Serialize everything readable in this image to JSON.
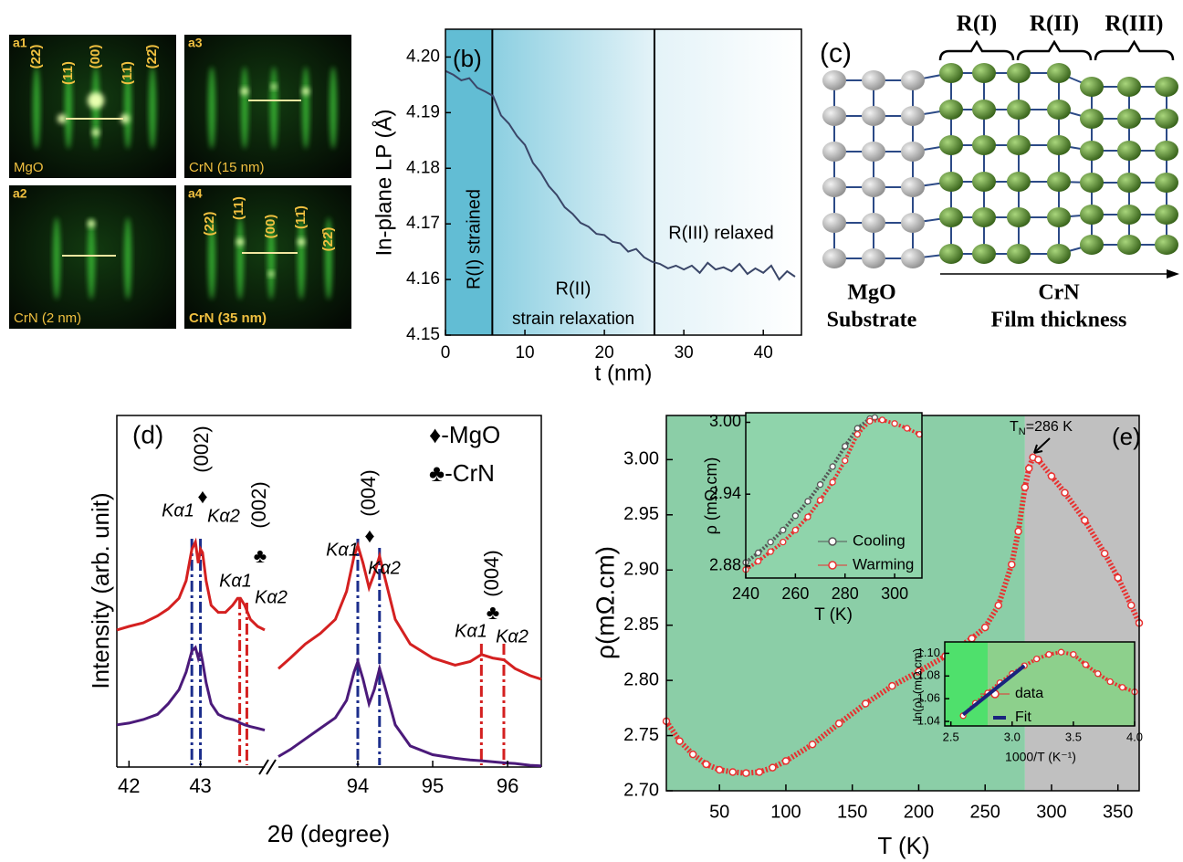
{
  "rheed": {
    "panels": [
      {
        "tag": "a1",
        "caption": "MgO",
        "indices": [
          "(22)",
          "(11)",
          "(00)",
          "(11̄)",
          "(22̄)"
        ]
      },
      {
        "tag": "a3",
        "caption": "CrN (15 nm)"
      },
      {
        "tag": "a2",
        "caption": "CrN (2 nm)"
      },
      {
        "tag": "a4",
        "caption": "CrN (35 nm)",
        "indices": [
          "(22)",
          "(11)",
          "(00)",
          "(11̄)",
          "(22̄)"
        ]
      }
    ]
  },
  "lattice": {
    "label": "(c)",
    "regions": [
      "R(I)",
      "R(II)",
      "R(III)"
    ],
    "substrate": [
      "MgO",
      "Substrate"
    ],
    "film": [
      "CrN",
      "Film thickness"
    ]
  },
  "chart_data": [
    {
      "type": "line",
      "title": "(b)",
      "xlabel": "t (nm)",
      "ylabel": "In-plane LP (Å)",
      "xlim": [
        0,
        44.8
      ],
      "ylim": [
        4.15,
        4.205
      ],
      "xticks": [
        0,
        10,
        20,
        30,
        40
      ],
      "yticks": [
        4.15,
        4.16,
        4.17,
        4.18,
        4.19,
        {
          "value": 4.2,
          "label": "4.20"
        }
      ],
      "color": "#3a4668",
      "regions": [
        5.9,
        26.3
      ],
      "region_colors": [
        "#62bdd4",
        "#8ccfe1",
        "#e4f3f8"
      ],
      "annotations": [
        "R(I) strained",
        "R(II)",
        "strain relaxation",
        "R(III) relaxed"
      ],
      "x": [
        0,
        1,
        2,
        3,
        4,
        5,
        6,
        7,
        8,
        9,
        10,
        11,
        12,
        13,
        14,
        15,
        16,
        17,
        18,
        19,
        20,
        21,
        22,
        23,
        24,
        25,
        26,
        27,
        28,
        29,
        30,
        31,
        32,
        33,
        34,
        35,
        36,
        37,
        38,
        39,
        40,
        41,
        42,
        43,
        44
      ],
      "values": [
        4.1975,
        4.1968,
        4.1958,
        4.1962,
        4.1945,
        4.1938,
        4.193,
        4.1895,
        4.188,
        4.1858,
        4.1842,
        4.181,
        4.1792,
        4.1768,
        4.1752,
        4.173,
        4.1718,
        4.1702,
        4.1695,
        4.1682,
        4.168,
        4.1668,
        4.1665,
        4.165,
        4.1655,
        4.164,
        4.1632,
        4.1628,
        4.162,
        4.1625,
        4.1618,
        4.1625,
        4.1612,
        4.163,
        4.1618,
        4.1622,
        4.1615,
        4.1628,
        4.161,
        4.162,
        4.1612,
        4.1625,
        4.16,
        4.1615,
        4.1605
      ]
    },
    {
      "type": "broken-line",
      "title": "(d)",
      "xlabel": "2θ (degree)",
      "ylabel": "Intensity (arb. unit)",
      "ylim": [
        0,
        100
      ],
      "legend_notes": [
        "♦-MgO",
        "♣-CrN"
      ],
      "segments": [
        {
          "xlim": [
            41.83,
            43.9
          ],
          "xticks": [
            42,
            43
          ],
          "x": [
            41.83,
            42.0,
            42.2,
            42.4,
            42.55,
            42.7,
            42.8,
            42.88,
            42.93,
            42.97,
            43.0,
            43.03,
            43.08,
            43.15,
            43.25,
            43.35,
            43.45,
            43.52,
            43.56,
            43.62,
            43.7,
            43.8,
            43.9
          ],
          "series": [
            {
              "color": "#d42020",
              "values": [
                39,
                40,
                41,
                43,
                45,
                48,
                53,
                62,
                64,
                58,
                62,
                61,
                53,
                46,
                44,
                44,
                46,
                48,
                48,
                46,
                42,
                40,
                39
              ]
            },
            {
              "color": "#4b1a7a",
              "values": [
                12,
                12.5,
                13.5,
                15,
                18,
                22,
                27,
                33,
                34,
                31,
                33,
                30,
                24,
                18,
                15,
                14,
                13.5,
                13,
                12.5,
                12,
                11.5,
                11,
                10.5
              ]
            }
          ],
          "reference_lines": [
            {
              "x": 42.88,
              "color": "#1c2e8c"
            },
            {
              "x": 43.0,
              "color": "#1c2e8c"
            },
            {
              "x": 43.55,
              "color": "#d42020"
            },
            {
              "x": 43.65,
              "color": "#d42020"
            }
          ],
          "peak_labels": [
            "Kα1",
            "Kα2",
            "Kα1",
            "Kα2"
          ],
          "reflections": [
            {
              "index": "(002)",
              "symbol": "♦"
            },
            {
              "index": "(002)",
              "symbol": "♣"
            }
          ]
        },
        {
          "xlim": [
            92.94,
            96.45
          ],
          "xticks": [
            94,
            95,
            96
          ],
          "x": [
            92.94,
            93.1,
            93.3,
            93.5,
            93.7,
            93.85,
            93.95,
            94.0,
            94.07,
            94.15,
            94.22,
            94.29,
            94.36,
            94.5,
            94.7,
            95.0,
            95.3,
            95.5,
            95.65,
            95.8,
            95.95,
            96.1,
            96.3,
            96.45
          ],
          "series": [
            {
              "color": "#d42020",
              "values": [
                28,
                31,
                35,
                38,
                42,
                50,
                60,
                63,
                58,
                51,
                55,
                60,
                54,
                42,
                35,
                31,
                29,
                30,
                32,
                31,
                30.5,
                28,
                26,
                25
              ]
            },
            {
              "color": "#4b1a7a",
              "values": [
                3,
                5,
                8,
                11,
                14,
                19,
                27,
                30,
                25,
                18,
                22,
                28,
                23,
                12,
                6,
                3.5,
                2.5,
                2,
                1.8,
                1.5,
                1.2,
                1,
                0.5,
                0.3
              ]
            }
          ],
          "reference_lines": [
            {
              "x": 94.0,
              "color": "#1c2e8c"
            },
            {
              "x": 94.29,
              "color": "#1c2e8c"
            },
            {
              "x": 95.65,
              "color": "#d42020"
            },
            {
              "x": 95.95,
              "color": "#d42020"
            }
          ],
          "peak_labels": [
            "Kα1",
            "Kα2",
            "Kα1",
            "Kα2"
          ],
          "reflections": [
            {
              "index": "(004)",
              "symbol": "♦"
            },
            {
              "index": "(004)",
              "symbol": "♣"
            }
          ]
        }
      ]
    },
    {
      "type": "scatter-line",
      "title": "(e)",
      "xlabel": "T (K)",
      "ylabel": "ρ(mΩ.cm)",
      "xlim": [
        10,
        366
      ],
      "ylim": [
        2.7,
        3.04
      ],
      "xticks": [
        50,
        100,
        150,
        200,
        250,
        300,
        350
      ],
      "yticks": [
        {
          "value": 2.7,
          "label": "2.70"
        },
        2.75,
        {
          "value": 2.8,
          "label": "2.80"
        },
        2.85,
        {
          "value": 2.9,
          "label": "2.90"
        },
        2.95,
        {
          "value": 3,
          "label": "3.00"
        }
      ],
      "color": "#e8302f",
      "shade_split": 280,
      "shade_colors": [
        "#8bcea7",
        "#c0c0c0"
      ],
      "tn_label": {
        "symbol": "T",
        "subscript": "N",
        "text": "=286 K"
      },
      "x": [
        10,
        20,
        30,
        40,
        50,
        60,
        70,
        80,
        90,
        100,
        120,
        140,
        160,
        180,
        200,
        220,
        240,
        250,
        260,
        270,
        275,
        280,
        283,
        286,
        290,
        300,
        310,
        325,
        340,
        350,
        360,
        366
      ],
      "values": [
        2.763,
        2.745,
        2.733,
        2.724,
        2.719,
        2.717,
        2.716,
        2.717,
        2.721,
        2.727,
        2.742,
        2.761,
        2.779,
        2.795,
        2.808,
        2.822,
        2.838,
        2.848,
        2.868,
        2.905,
        2.935,
        2.975,
        2.992,
        3.002,
        3.0,
        2.985,
        2.97,
        2.945,
        2.915,
        2.893,
        2.868,
        2.852
      ]
    },
    {
      "type": "scatter-line",
      "xlabel": "T (K)",
      "ylabel": "ρ (mΩ.cm)",
      "xlim": [
        240,
        311
      ],
      "ylim": [
        2.87,
        3.008
      ],
      "xticks": [
        240,
        260,
        280,
        300
      ],
      "yticks": [
        2.88,
        2.94,
        {
          "value": 3,
          "label": "3.00"
        }
      ],
      "background": "#8fd4ab",
      "series": [
        {
          "name": "Cooling",
          "color": "#555555",
          "x": [
            240,
            245,
            250,
            255,
            260,
            265,
            270,
            275,
            280,
            285,
            290,
            292
          ],
          "values": [
            2.883,
            2.891,
            2.9,
            2.91,
            2.922,
            2.934,
            2.948,
            2.963,
            2.98,
            2.995,
            3.003,
            3.004
          ]
        },
        {
          "name": "Warming",
          "color": "#e8302f",
          "x": [
            240,
            245,
            250,
            255,
            260,
            265,
            270,
            275,
            280,
            285,
            290,
            295,
            300,
            305,
            310
          ],
          "values": [
            2.877,
            2.884,
            2.892,
            2.9,
            2.91,
            2.921,
            2.935,
            2.95,
            2.968,
            2.99,
            3.001,
            3.002,
            2.999,
            2.995,
            2.99
          ]
        }
      ]
    },
    {
      "type": "scatter-line",
      "xlabel": "1000/T (K⁻¹)",
      "ylabel": "ln(ρ) (mΩ.cm)",
      "xlim": [
        2.45,
        4.0
      ],
      "ylim": [
        1.036,
        1.11
      ],
      "xticks": [
        2.5,
        {
          "value": 3,
          "label": "3.0"
        },
        3.5,
        {
          "value": 4,
          "label": "4.0"
        }
      ],
      "yticks": [
        1.04,
        1.06,
        1.08,
        {
          "value": 1.1,
          "label": "1.10"
        }
      ],
      "shade_split": 2.8,
      "shade_colors": [
        "#4fe06c",
        "#8dd08c"
      ],
      "series": [
        {
          "name": "data",
          "color": "#e8302f",
          "x": [
            2.6,
            2.7,
            2.8,
            2.9,
            3.0,
            3.1,
            3.2,
            3.3,
            3.4,
            3.5,
            3.6,
            3.7,
            3.8,
            3.9,
            4.0
          ],
          "values": [
            1.045,
            1.056,
            1.065,
            1.074,
            1.082,
            1.089,
            1.095,
            1.099,
            1.101,
            1.099,
            1.09,
            1.082,
            1.075,
            1.07,
            1.066
          ]
        },
        {
          "name": "Fit",
          "color": "#1a237e",
          "x": [
            2.6,
            3.1
          ],
          "values": [
            1.046,
            1.089
          ]
        }
      ]
    }
  ]
}
